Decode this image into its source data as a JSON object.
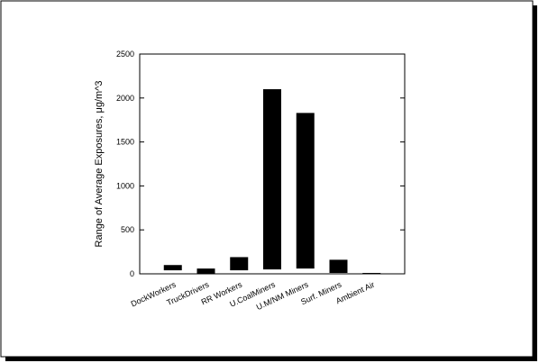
{
  "chart_data": {
    "type": "range-bar",
    "ylabel": "Range of Average Exposures, μg/m^3",
    "categories": [
      "DockWorkers",
      "TruckDrivers",
      "RR Workers",
      "U.CoalMiners",
      "U.M/NM Miners",
      "Surf. Miners",
      "Ambient Air"
    ],
    "low": [
      40,
      5,
      40,
      50,
      60,
      10,
      1
    ],
    "high": [
      100,
      60,
      190,
      2100,
      1830,
      160,
      10
    ],
    "color": "#000000",
    "ylim": [
      0,
      2500
    ],
    "yticks": [
      0,
      500,
      1000,
      1500,
      2000,
      2500
    ]
  }
}
